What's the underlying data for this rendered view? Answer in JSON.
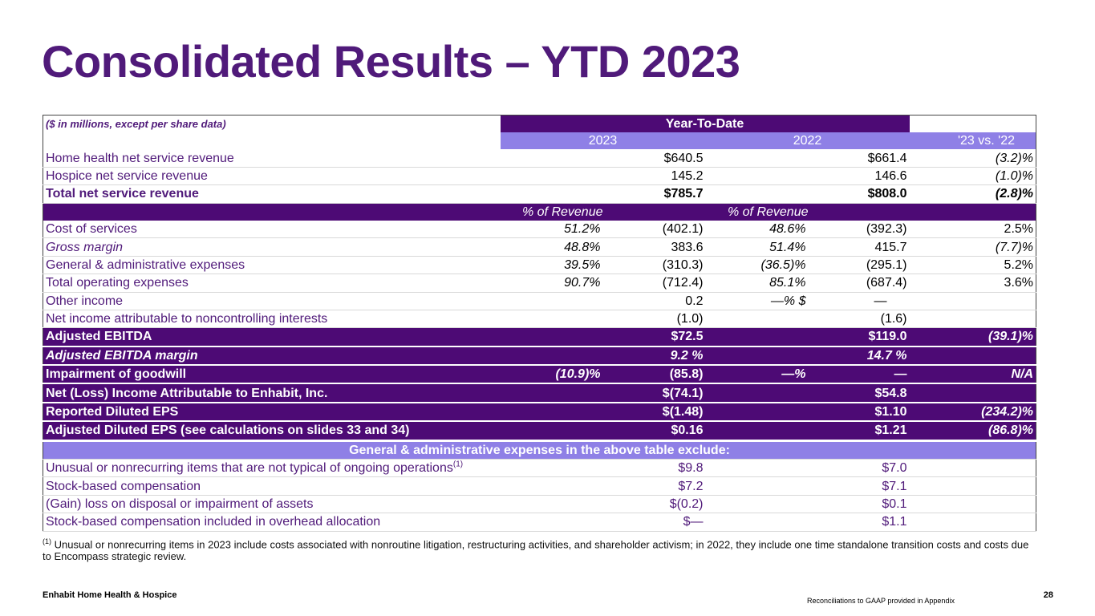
{
  "title": "Consolidated Results – YTD 2023",
  "table": {
    "note": "($ in millions, except per share data)",
    "ytd_label": "Year-To-Date",
    "col_2023": "2023",
    "col_2022": "2022",
    "col_change": "'23 vs. '22",
    "pct_of_revenue": "% of Revenue",
    "rows": {
      "home_health": {
        "label": "Home health net service revenue",
        "v2023": "$640.5",
        "v2022": "$661.4",
        "chg": "(3.2)%"
      },
      "hospice": {
        "label": "Hospice net service revenue",
        "v2023": "145.2",
        "v2022": "146.6",
        "chg": "(1.0)%"
      },
      "total_rev": {
        "label": "Total net service revenue",
        "v2023": "$785.7",
        "v2022": "$808.0",
        "chg": "(2.8)%"
      },
      "cost_services": {
        "label": "Cost of services",
        "p2023": "51.2%",
        "v2023": "(402.1)",
        "p2022": "48.6%",
        "v2022": "(392.3)",
        "chg": "2.5%"
      },
      "gross_margin": {
        "label": "Gross margin",
        "p2023": "48.8%",
        "v2023": "383.6",
        "p2022": "51.4%",
        "v2022": "415.7",
        "chg": "(7.7)%"
      },
      "ga": {
        "label": "General & administrative expenses",
        "p2023": "39.5%",
        "v2023": "(310.3)",
        "p2022": "(36.5)%",
        "v2022": "(295.1)",
        "chg": "5.2%"
      },
      "total_opex": {
        "label": "Total operating expenses",
        "p2023": "90.7%",
        "v2023": "(712.4)",
        "p2022": "85.1%",
        "v2022": "(687.4)",
        "chg": "3.6%"
      },
      "other_income": {
        "label": "Other income",
        "v2023": "0.2",
        "p2022": "—% $",
        "v2022": "—"
      },
      "nci": {
        "label": "Net income attributable to noncontrolling interests",
        "v2023": "(1.0)",
        "v2022": "(1.6)"
      },
      "adj_ebitda": {
        "label": "Adjusted EBITDA",
        "v2023": "$72.5",
        "v2022": "$119.0",
        "chg": "(39.1)%"
      },
      "adj_ebitda_margin": {
        "label": "Adjusted EBITDA margin",
        "v2023": "9.2 %",
        "v2022": "14.7 %"
      },
      "impairment": {
        "label": "Impairment of goodwill",
        "p2023": "(10.9)%",
        "v2023": "(85.8)",
        "p2022": "—%",
        "v2022": "—",
        "chg": "N/A"
      },
      "net_income": {
        "label": "Net (Loss) Income Attributable to Enhabit, Inc.",
        "v2023": "$(74.1)",
        "v2022": "$54.8"
      },
      "reported_eps": {
        "label": "Reported Diluted EPS",
        "v2023": "$(1.48)",
        "v2022": "$1.10",
        "chg": "(234.2)%"
      },
      "adjusted_eps": {
        "label": "Adjusted Diluted EPS (see calculations on slides 33 and 34)",
        "v2023": "$0.16",
        "v2022": "$1.21",
        "chg": "(86.8)%"
      }
    },
    "exclude_header": "General & administrative expenses in the above table exclude:",
    "excludes": {
      "unusual": {
        "label": "Unusual or nonrecurring items that are not typical of ongoing operations",
        "sup": "(1)",
        "v2023": "$9.8",
        "v2022": "$7.0"
      },
      "stock_comp": {
        "label": "Stock-based compensation",
        "v2023": "$7.2",
        "v2022": "$7.1"
      },
      "gain_loss": {
        "label": "(Gain) loss on disposal or impairment of assets",
        "v2023": "$(0.2)",
        "v2022": "$0.1"
      },
      "stock_comp_overhead": {
        "label": "Stock-based compensation included in overhead allocation",
        "v2023": "$—",
        "v2022": "$1.1"
      }
    }
  },
  "footnote": {
    "marker": "(1)",
    "text": "Unusual or nonrecurring items in 2023 include costs associated with nonroutine litigation, restructuring activities, and shareholder activism; in 2022, they include one time standalone transition costs and costs due to Encompass strategic review."
  },
  "footer": {
    "company": "Enhabit Home Health & Hospice",
    "page": "28",
    "reconciliation": "Reconciliations to GAAP provided in Appendix"
  }
}
